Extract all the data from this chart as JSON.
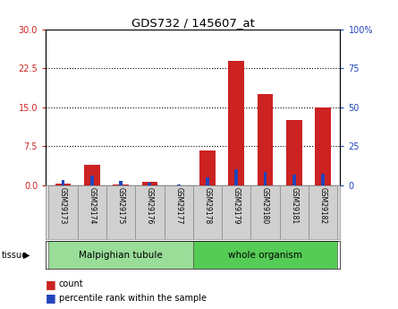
{
  "title": "GDS732 / 145607_at",
  "samples": [
    "GSM29173",
    "GSM29174",
    "GSM29175",
    "GSM29176",
    "GSM29177",
    "GSM29178",
    "GSM29179",
    "GSM29180",
    "GSM29181",
    "GSM29182"
  ],
  "count": [
    0.3,
    4.0,
    0.25,
    0.65,
    0.08,
    6.8,
    24.0,
    17.5,
    12.5,
    15.0
  ],
  "percentile": [
    3.5,
    6.5,
    3.0,
    1.5,
    0.6,
    5.0,
    10.2,
    8.5,
    7.0,
    7.5
  ],
  "red_color": "#cc2222",
  "blue_color": "#2244bb",
  "left_ylim": [
    0,
    30
  ],
  "right_ylim": [
    0,
    100
  ],
  "left_yticks": [
    0,
    7.5,
    15,
    22.5,
    30
  ],
  "right_yticks": [
    0,
    25,
    50,
    75,
    100
  ],
  "right_yticklabels": [
    "0",
    "25",
    "50",
    "75",
    "100%"
  ],
  "tissue_groups": [
    {
      "label": "Malpighian tubule",
      "start": 0,
      "end": 5,
      "color": "#99dd99"
    },
    {
      "label": "whole organism",
      "start": 5,
      "end": 10,
      "color": "#55cc55"
    }
  ],
  "red_bar_width": 0.55,
  "blue_bar_width": 0.12,
  "grid_linestyle": ":",
  "grid_linewidth": 0.8,
  "label_fontsize": 6,
  "tick_fontsize": 7
}
